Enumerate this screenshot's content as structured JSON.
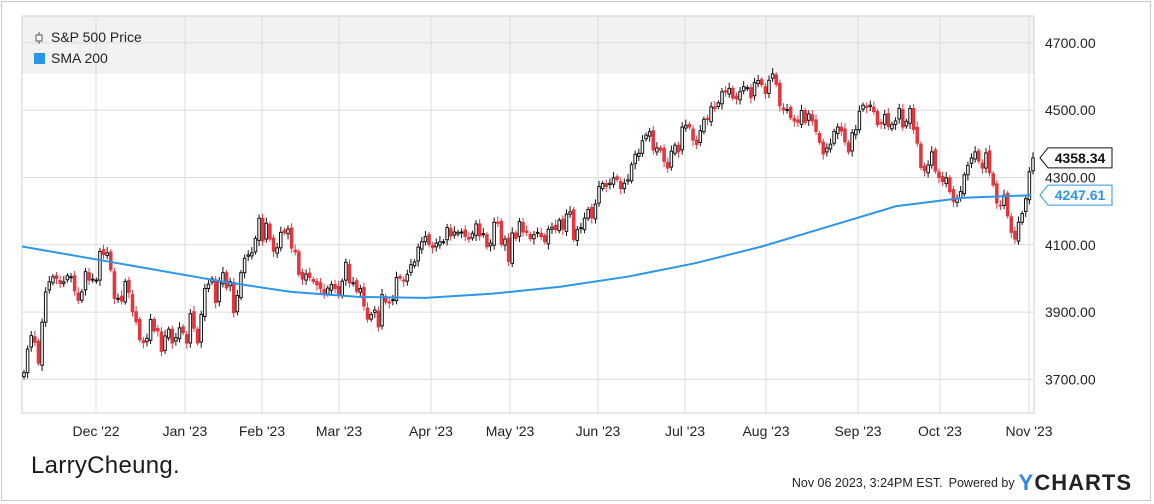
{
  "legend": {
    "price_label": "S&P 500 Price",
    "sma_label": "SMA 200"
  },
  "brand": "LarryCheung.",
  "footer": {
    "timestamp": "Nov 06 2023, 3:24PM EST.",
    "powered_by": "Powered by",
    "logo_y": "Y",
    "logo_rest": "CHARTS"
  },
  "colors": {
    "up": "#111111",
    "down": "#e5353d",
    "sma": "#2e96e8",
    "grid": "#dcdcdc",
    "shade": "#f2f2f2"
  },
  "chart_data": {
    "type": "candlestick",
    "title": "",
    "ylim": [
      3600,
      4780
    ],
    "y_ticks": [
      "3700.00",
      "3900.00",
      "4100.00",
      "4300.00",
      "4500.00",
      "4700.00"
    ],
    "x_ticks": [
      "Dec '22",
      "Jan '23",
      "Feb '23",
      "Mar '23",
      "Apr '23",
      "May '23",
      "Jun '23",
      "Jul '23",
      "Aug '23",
      "Sep '23",
      "Oct '23",
      "Nov '23"
    ],
    "series": [
      {
        "name": "S&P 500 Price",
        "closes": [
          3720,
          3790,
          3830,
          3810,
          3748,
          3870,
          3960,
          3990,
          4005,
          4000,
          3985,
          3990,
          4008,
          4005,
          3963,
          3935,
          3960,
          4020,
          3995,
          3998,
          3995,
          4080,
          4071,
          4076,
          4026,
          3941,
          3941,
          3933,
          3991,
          3958,
          3901,
          3872,
          3818,
          3809,
          3822,
          3878,
          3845,
          3844,
          3783,
          3829,
          3849,
          3808,
          3824,
          3853,
          3839,
          3808,
          3895,
          3852,
          3808,
          3893,
          3970,
          3983,
          3999,
          3928,
          3990,
          4017,
          3972,
          3991,
          3898,
          3949,
          4017,
          4060,
          4070,
          4076,
          4119,
          4179,
          4111,
          4164,
          4117,
          4081,
          4091,
          4137,
          4136,
          4147,
          4090,
          4079,
          4012,
          3998,
          4013,
          4003,
          3991,
          3981,
          3970,
          3951,
          3971,
          3982,
          3970,
          3951,
          3992,
          4048,
          3987,
          3987,
          3962,
          3970,
          3918,
          3879,
          3893,
          3906,
          3856,
          3952,
          3930,
          3928,
          3937,
          4003,
          4001,
          3992,
          4012,
          4041,
          4049,
          4093,
          4109,
          4124,
          4101,
          4091,
          4105,
          4109,
          4109,
          4151,
          4126,
          4138,
          4137,
          4138,
          4125,
          4117,
          4134,
          4162,
          4126,
          4133,
          4094,
          4105,
          4167,
          4164,
          4102,
          4117,
          4051,
          4135,
          4119,
          4169,
          4138,
          4137,
          4118,
          4130,
          4137,
          4124,
          4109,
          4146,
          4152,
          4145,
          4173,
          4146,
          4191,
          4198,
          4116,
          4145,
          4151,
          4179,
          4205,
          4180,
          4221,
          4273,
          4282,
          4273,
          4283,
          4299,
          4294,
          4267,
          4283,
          4293,
          4338,
          4369,
          4372,
          4409,
          4426,
          4436,
          4382,
          4388,
          4381,
          4348,
          4328,
          4378,
          4396,
          4376,
          4450,
          4455,
          4450,
          4411,
          4398,
          4439,
          4473,
          4472,
          4510,
          4505,
          4522,
          4555,
          4554,
          4565,
          4536,
          4534,
          4555,
          4570,
          4567,
          4537,
          4582,
          4588,
          4576,
          4550,
          4589,
          4608,
          4577,
          4513,
          4501,
          4502,
          4478,
          4468,
          4464,
          4499,
          4464,
          4489,
          4468,
          4437,
          4405,
          4370,
          4388,
          4399,
          4437,
          4450,
          4438,
          4406,
          4376,
          4433,
          4442,
          4497,
          4515,
          4508,
          4515,
          4496,
          4457,
          4461,
          4487,
          4451,
          4458,
          4468,
          4505,
          4450,
          4467,
          4505,
          4443,
          4402,
          4330,
          4320,
          4337,
          4376,
          4319,
          4300,
          4288,
          4299,
          4258,
          4229,
          4236,
          4258,
          4308,
          4336,
          4358,
          4376,
          4349,
          4328,
          4373,
          4314,
          4278,
          4224,
          4217,
          4247,
          4186,
          4137,
          4117,
          4167,
          4193,
          4237,
          4317,
          4358
        ]
      },
      {
        "name": "SMA 200",
        "values": [
          4095,
          4060,
          4025,
          3990,
          3960,
          3945,
          3942,
          3955,
          3975,
          4005,
          4045,
          4095,
          4155,
          4215,
          4240,
          4247
        ]
      }
    ],
    "last_price": "4358.34",
    "last_sma": "4247.61"
  }
}
